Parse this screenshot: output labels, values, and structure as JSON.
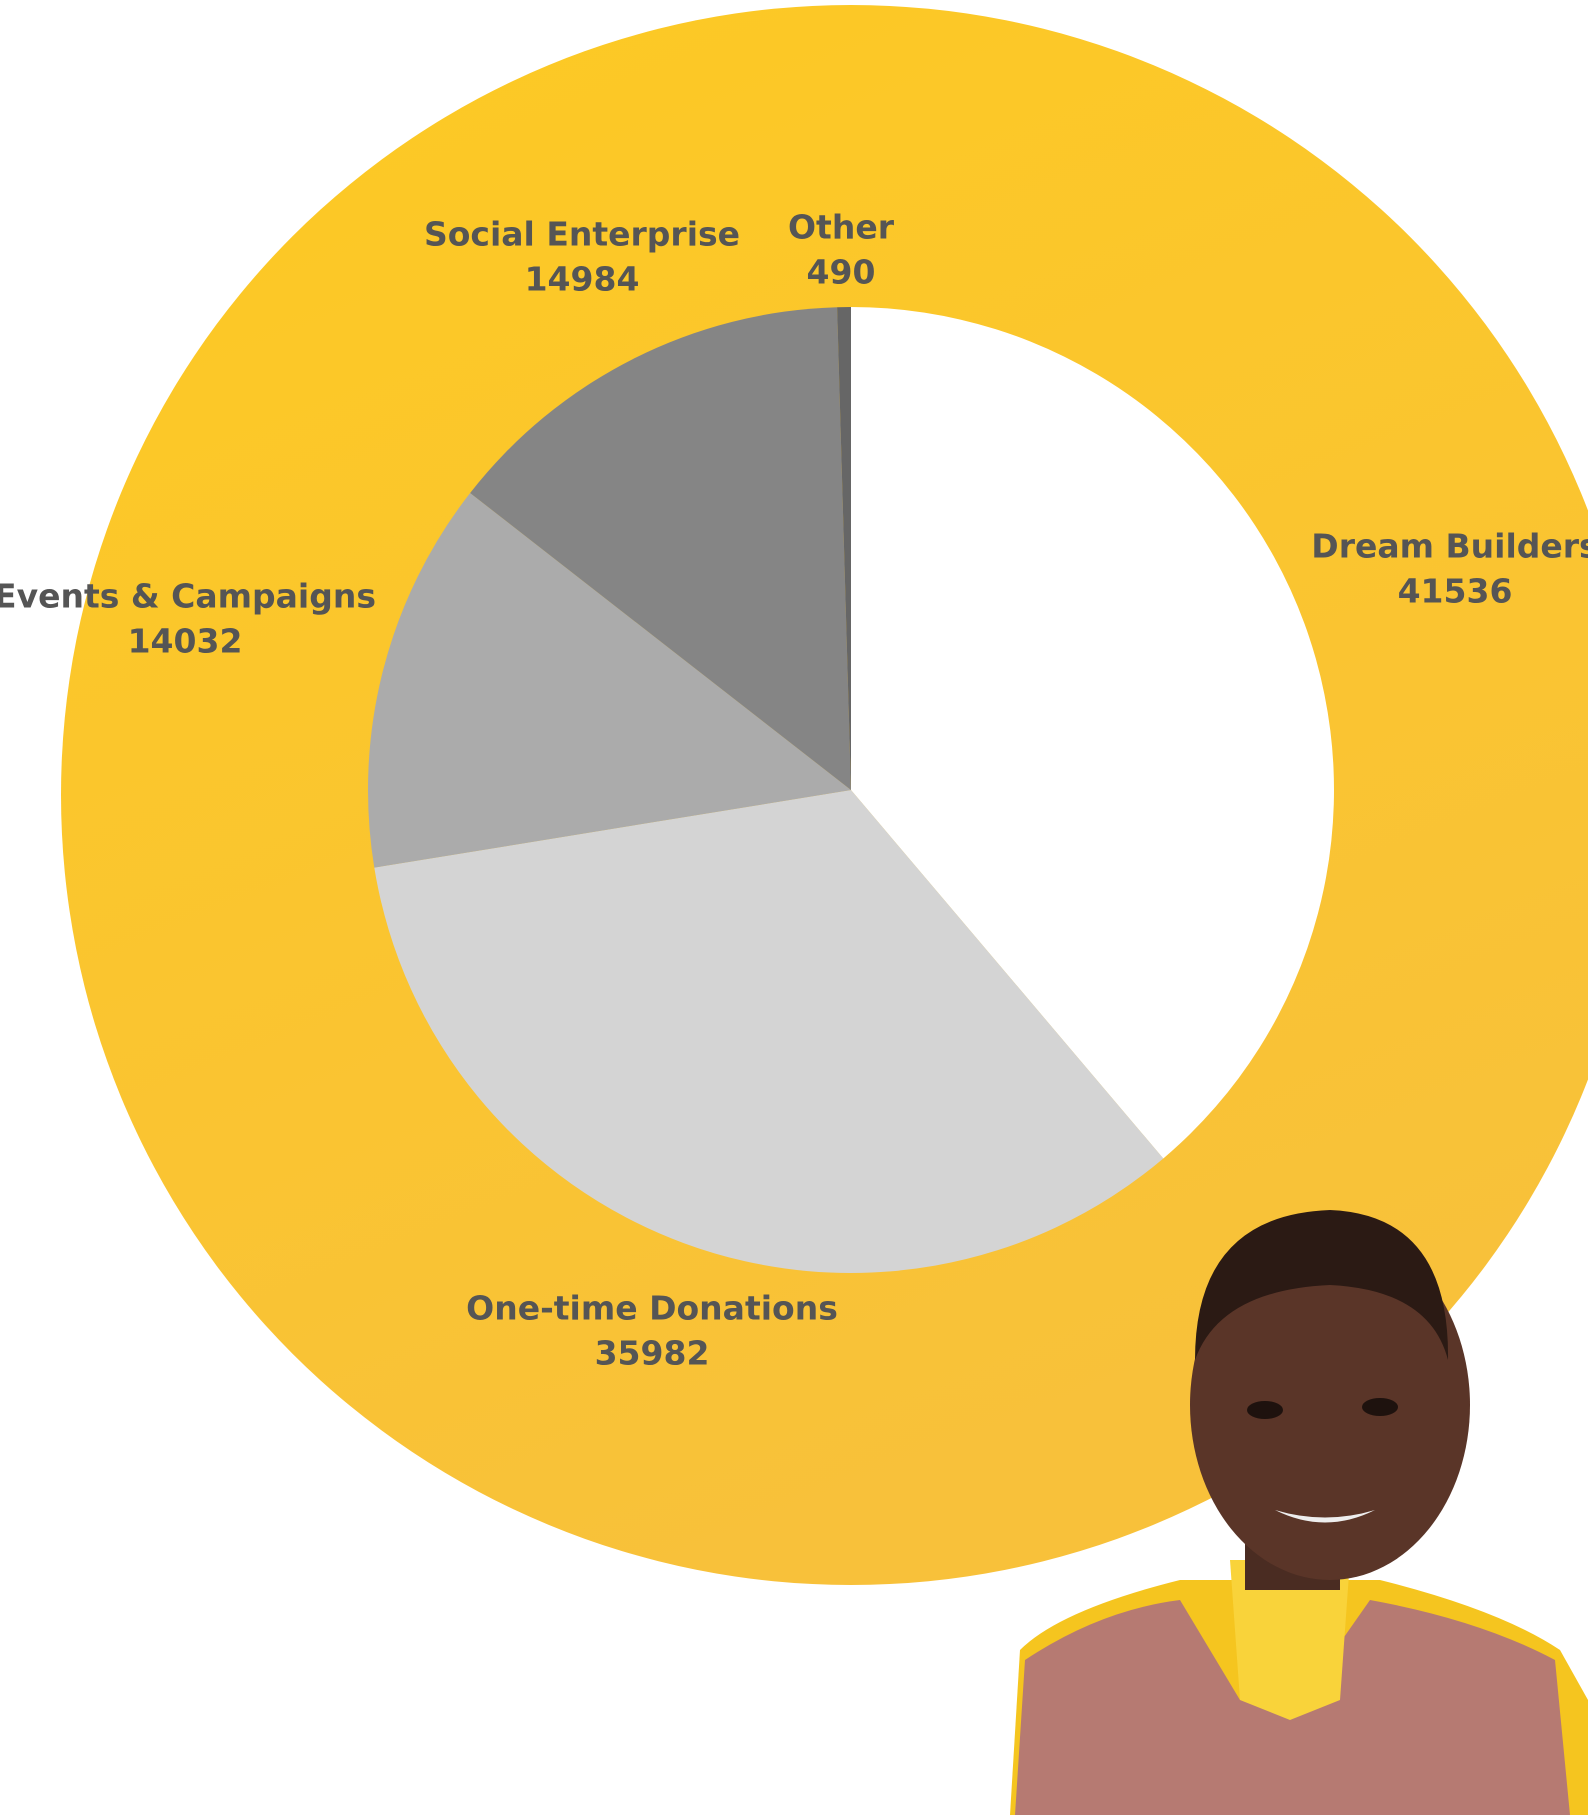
{
  "chart_data": {
    "type": "pie",
    "categories": [
      "Dream Builders",
      "One-time Donations",
      "Events & Campaigns",
      "Social Enterprise",
      "Other"
    ],
    "values": [
      41536,
      35982,
      14032,
      14984,
      490
    ],
    "colors": [
      "#ffffff",
      "#d4d4d4",
      "#ababab",
      "#858585",
      "#666666"
    ]
  }
}
